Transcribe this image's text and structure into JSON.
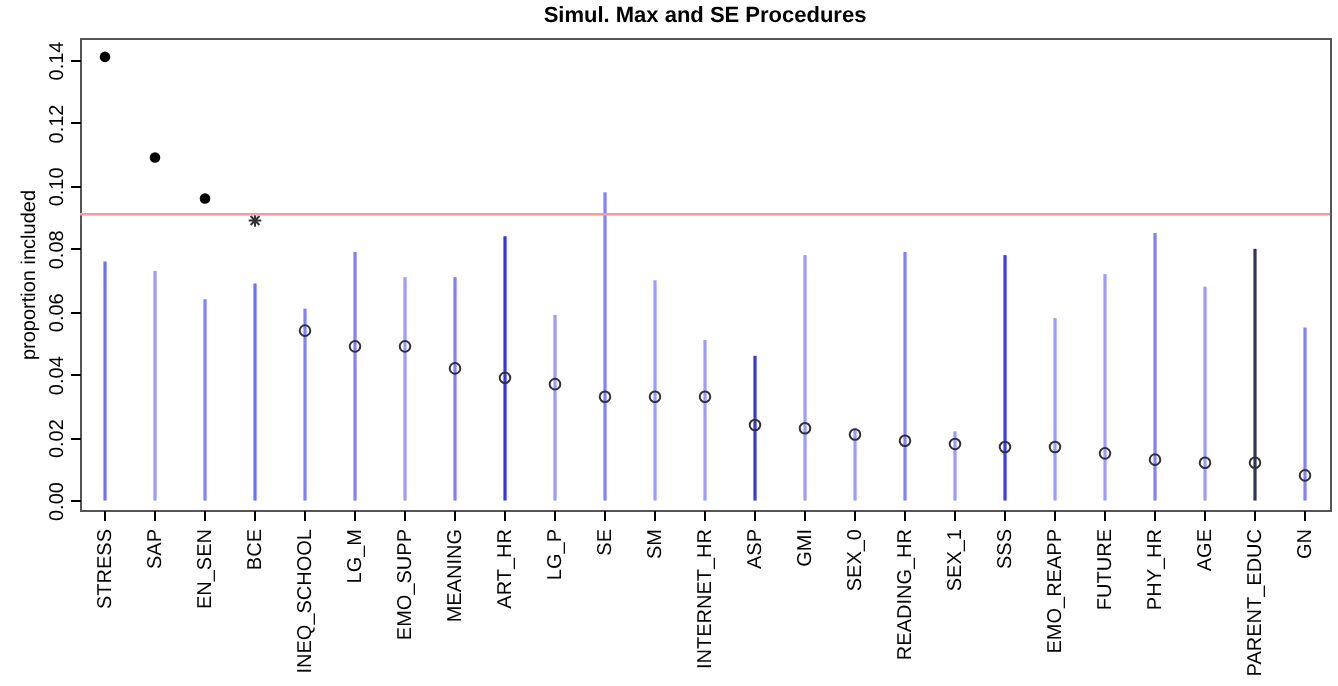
{
  "chart_data": {
    "type": "bar",
    "title": "Simul. Max and SE Procedures",
    "ylabel": "proportion included",
    "categories": [
      "STRESS",
      "SAP",
      "EN_SEN",
      "BCE",
      "INEQ_SCHOOL",
      "LG_M",
      "EMO_SUPP",
      "MEANING",
      "ART_HR",
      "LG_P",
      "SE",
      "SM",
      "INTERNET_HR",
      "ASP",
      "GMI",
      "SEX_0",
      "READING_HR",
      "SEX_1",
      "SSS",
      "EMO_REAPP",
      "FUTURE",
      "PHY_HR",
      "AGE",
      "PARENT_EDUC",
      "GN"
    ],
    "ylim": [
      -0.003,
      0.147
    ],
    "yticks": [
      {
        "value": 0,
        "label": "0.00"
      },
      {
        "value": 0.02,
        "label": "0.02"
      },
      {
        "value": 0.04,
        "label": "0.04"
      },
      {
        "value": 0.06,
        "label": "0.06"
      },
      {
        "value": 0.08,
        "label": "0.08"
      },
      {
        "value": 0.1,
        "label": "0.10"
      },
      {
        "value": 0.12,
        "label": "0.12"
      },
      {
        "value": 0.14,
        "label": "0.14"
      }
    ],
    "grid": false,
    "series": [
      {
        "colors": [
          "#6f6fff",
          "#9a9aff",
          "#7f7fff",
          "#6f6fff",
          "#7f7fff",
          "#7f7fff",
          "#9a9aff",
          "#7f7fff",
          "#3333ee",
          "#9a9aff",
          "#7f7fff",
          "#9a9aff",
          "#9a9aff",
          "#3a3acc",
          "#9a9aff",
          "#9a9aff",
          "#7f7fff",
          "#9a9aff",
          "#3a3aee",
          "#9a9aff",
          "#9a9aff",
          "#7f7fff",
          "#9a9aff",
          "#333355",
          "#7f7fff"
        ],
        "values": [
          0.076,
          0.073,
          0.064,
          0.069,
          0.061,
          0.079,
          0.071,
          0.071,
          0.084,
          0.059,
          0.098,
          0.07,
          0.051,
          0.046,
          0.078,
          0.023,
          0.079,
          0.022,
          0.078,
          0.058,
          0.072,
          0.085,
          0.068,
          0.08,
          0.055
        ]
      },
      {
        "type": "scatter",
        "marker": "circle",
        "color": "#000000",
        "x": [
          "STRESS",
          "SAP",
          "EN_SEN"
        ],
        "values": [
          0.141,
          0.109,
          0.096
        ]
      },
      {
        "type": "scatter",
        "marker": "cross",
        "color": "#333333",
        "x": [
          "BCE"
        ],
        "values": [
          0.089
        ]
      },
      {
        "type": "scatter",
        "marker": "circle",
        "color": "#333333",
        "x": [
          "INEQ_SCHOOL",
          "LG_M",
          "EMO_SUPP",
          "MEANING",
          "ART_HR",
          "LG_P",
          "SE",
          "SM",
          "INTERNET_HR",
          "ASP",
          "GMI",
          "SEX_0",
          "READING_HR",
          "SEX_1",
          "SSS",
          "EMO_REAPP",
          "FUTURE",
          "PHY_HR",
          "AGE",
          "PARENT_EDUC",
          "GN"
        ],
        "values": [
          0.054,
          0.049,
          0.049,
          0.042,
          0.039,
          0.037,
          0.033,
          0.033,
          0.033,
          0.024,
          0.023,
          0.021,
          0.019,
          0.018,
          0.017,
          0.017,
          0.015,
          0.013,
          0.012,
          0.012,
          0.008
        ]
      }
    ],
    "ref_lines": [
      {
        "axis": "y",
        "value": 0.091,
        "color": "#ff9999"
      }
    ]
  }
}
